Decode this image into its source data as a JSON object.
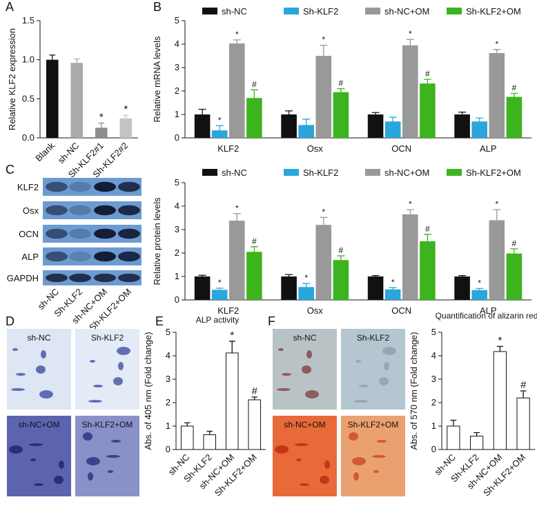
{
  "chart_data": [
    {
      "panel_label": "A",
      "type": "bar",
      "ylabel": "Relative KLF2 expression",
      "categories": [
        "Blank",
        "sh-NC",
        "Sh-KLF2#1",
        "Sh-KLF2#2"
      ],
      "values": [
        1.0,
        0.96,
        0.13,
        0.25
      ],
      "errors": [
        0.06,
        0.05,
        0.06,
        0.04
      ],
      "markers": [
        null,
        null,
        "*",
        "*"
      ],
      "colors": [
        "#111111",
        "#aaaaaa",
        "#8c8c8c",
        "#c4c4c4"
      ],
      "ylim": [
        0,
        1.5
      ],
      "yticks": [
        {
          "value": 0,
          "label": "0.0"
        },
        {
          "value": 0.5,
          "label": "0.5"
        },
        {
          "value": 1,
          "label": "1.0"
        },
        {
          "value": 1.5,
          "label": "1.5"
        }
      ]
    },
    {
      "panel_label": "B",
      "type": "bar",
      "ylabel": "Relative mRNA levels",
      "categories": [
        "KLF2",
        "Osx",
        "OCN",
        "ALP"
      ],
      "series": [
        {
          "name": "sh-NC",
          "color": "#111111",
          "values": [
            1.0,
            1.0,
            1.0,
            1.0
          ],
          "errors": [
            0.22,
            0.15,
            0.08,
            0.1
          ]
        },
        {
          "name": "Sh-KLF2",
          "color": "#2aa6dc",
          "values": [
            0.32,
            0.55,
            0.7,
            0.7
          ],
          "errors": [
            0.2,
            0.25,
            0.18,
            0.15
          ],
          "markers": [
            "*",
            null,
            null,
            null
          ]
        },
        {
          "name": "sh-NC+OM",
          "color": "#999999",
          "values": [
            4.03,
            3.5,
            3.95,
            3.62
          ],
          "errors": [
            0.15,
            0.45,
            0.25,
            0.15
          ],
          "markers": [
            "*",
            "*",
            "*",
            "*"
          ]
        },
        {
          "name": "Sh-KLF2+OM",
          "color": "#3cb41e",
          "values": [
            1.7,
            1.95,
            2.32,
            1.75
          ],
          "errors": [
            0.35,
            0.15,
            0.18,
            0.15
          ],
          "markers": [
            "#",
            "#",
            "#",
            "#"
          ]
        }
      ],
      "ylim": [
        0,
        5
      ],
      "yticks": [
        0,
        1,
        2,
        3,
        4,
        5
      ]
    },
    {
      "type": "bar",
      "ylabel": "Relative protein levels",
      "categories": [
        "KLF2",
        "Osx",
        "OCN",
        "ALP"
      ],
      "series": [
        {
          "name": "sh-NC",
          "color": "#111111",
          "values": [
            1.0,
            1.0,
            1.0,
            1.0
          ],
          "errors": [
            0.05,
            0.08,
            0.04,
            0.04
          ]
        },
        {
          "name": "Sh-KLF2",
          "color": "#2aa6dc",
          "values": [
            0.43,
            0.55,
            0.45,
            0.42
          ],
          "errors": [
            0.07,
            0.15,
            0.07,
            0.07
          ],
          "markers": [
            "*",
            "*",
            "*",
            "*"
          ]
        },
        {
          "name": "sh-NC+OM",
          "color": "#999999",
          "values": [
            3.38,
            3.2,
            3.65,
            3.4
          ],
          "errors": [
            0.3,
            0.32,
            0.2,
            0.45
          ],
          "markers": [
            "*",
            "*",
            "*",
            "*"
          ]
        },
        {
          "name": "Sh-KLF2+OM",
          "color": "#3cb41e",
          "values": [
            2.05,
            1.7,
            2.5,
            1.98
          ],
          "errors": [
            0.22,
            0.18,
            0.3,
            0.2
          ],
          "markers": [
            "#",
            "#",
            "#",
            "#"
          ]
        }
      ],
      "ylim": [
        0,
        5
      ],
      "yticks": [
        0,
        1,
        2,
        3,
        4,
        5
      ]
    },
    {
      "panel_label": "E",
      "type": "bar",
      "title": "ALP activity",
      "ylabel": "Abs. of 405 nm (Fold change)",
      "categories": [
        "sh-NC",
        "Sh-KLF2",
        "sh-NC+OM",
        "Sh-KLF2+OM"
      ],
      "values": [
        1.0,
        0.63,
        4.12,
        2.12
      ],
      "errors": [
        0.14,
        0.15,
        0.5,
        0.12
      ],
      "markers": [
        null,
        null,
        "*",
        "#"
      ],
      "color": "#ffffff",
      "edgecolor": "#111111",
      "ylim": [
        0,
        5
      ],
      "yticks": [
        0,
        1,
        2,
        3,
        4,
        5
      ]
    },
    {
      "type": "bar",
      "title": "Quantification of alizarin red",
      "ylabel": "Abs. of 570 nm (Fold change)",
      "categories": [
        "sh-NC",
        "Sh-KLF2",
        "sh-NC+OM",
        "Sh-KLF2+OM"
      ],
      "values": [
        1.0,
        0.57,
        4.18,
        2.2
      ],
      "errors": [
        0.25,
        0.15,
        0.22,
        0.3
      ],
      "markers": [
        null,
        null,
        "*",
        "#"
      ],
      "color": "#ffffff",
      "edgecolor": "#111111",
      "ylim": [
        0,
        5
      ],
      "yticks": [
        0,
        1,
        2,
        3,
        4,
        5
      ]
    }
  ],
  "blot": {
    "panel_label": "C",
    "rows": [
      "KLF2",
      "Osx",
      "OCN",
      "ALP",
      "GAPDH"
    ],
    "lanes": [
      "sh-NC",
      "Sh-KLF2",
      "sh-NC+OM",
      "Sh-KLF2+OM"
    ]
  },
  "micrographs": [
    {
      "panel_label": "D",
      "labels": [
        "sh-NC",
        "Sh-KLF2",
        "sh-NC+OM",
        "Sh-KLF2+OM"
      ]
    },
    {
      "panel_label": "F",
      "labels": [
        "sh-NC",
        "Sh-KLF2",
        "sh-NC+OM",
        "Sh-KLF2+OM"
      ]
    }
  ]
}
